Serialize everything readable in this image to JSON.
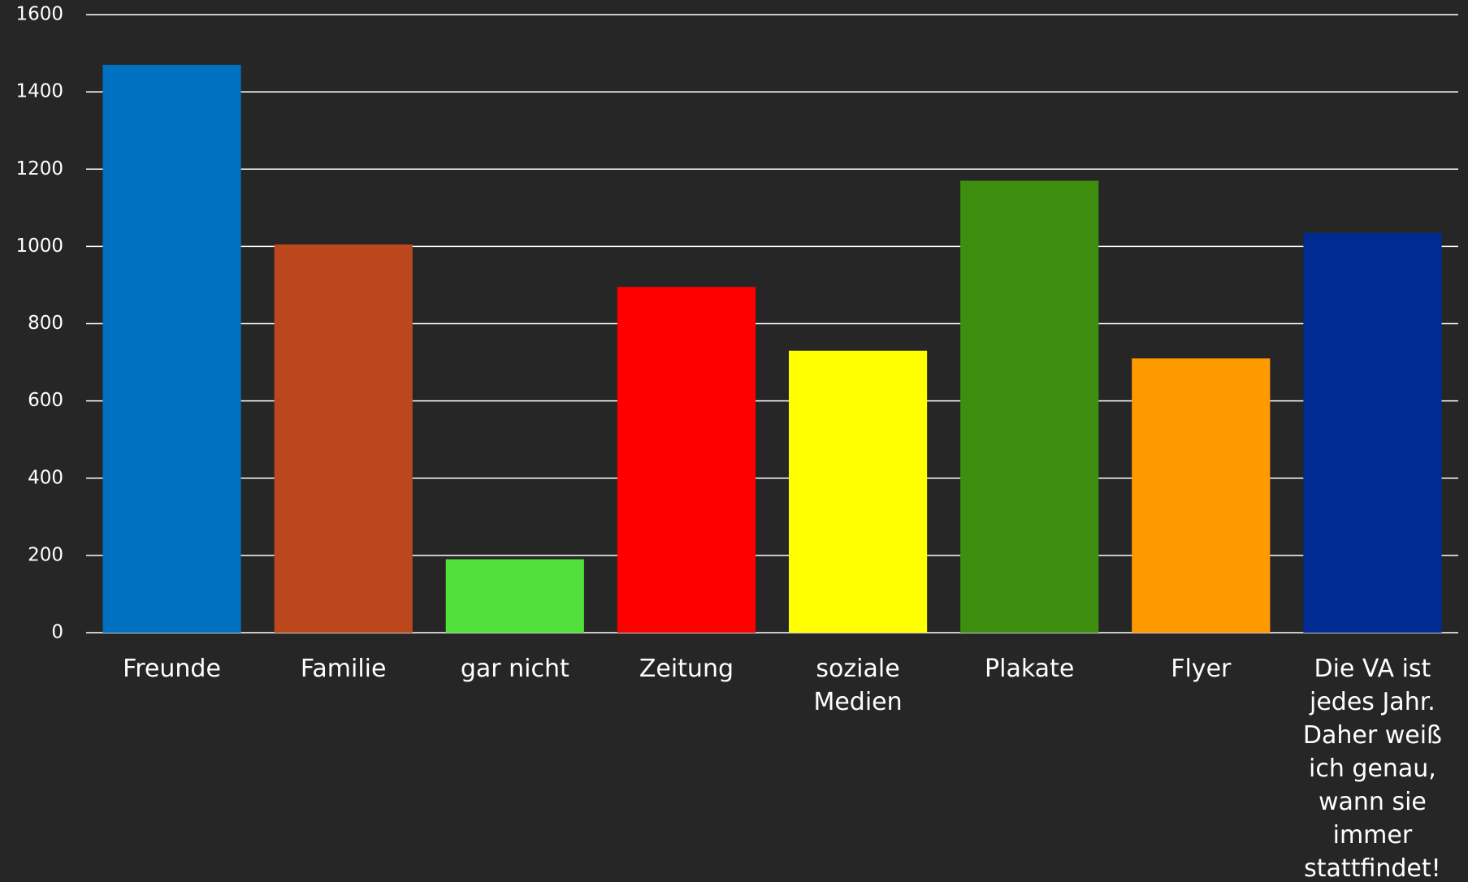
{
  "chart_data": {
    "type": "bar",
    "categories": [
      "Freunde",
      "Familie",
      "gar nicht",
      "Zeitung",
      "soziale Medien",
      "Plakate",
      "Flyer",
      "Die VA ist jedes Jahr. Daher weiß ich genau, wann sie immer stattfindet!"
    ],
    "values": [
      1470,
      1005,
      190,
      895,
      730,
      1170,
      710,
      1035
    ],
    "colors": [
      "#0070c0",
      "#bd471d",
      "#52e03a",
      "#ff0000",
      "#ffff00",
      "#3e8e0f",
      "#ff9900",
      "#002b90"
    ],
    "ylim": [
      0,
      1600
    ],
    "yticks": [
      0,
      200,
      400,
      600,
      800,
      1000,
      1200,
      1400,
      1600
    ],
    "grid": true
  }
}
